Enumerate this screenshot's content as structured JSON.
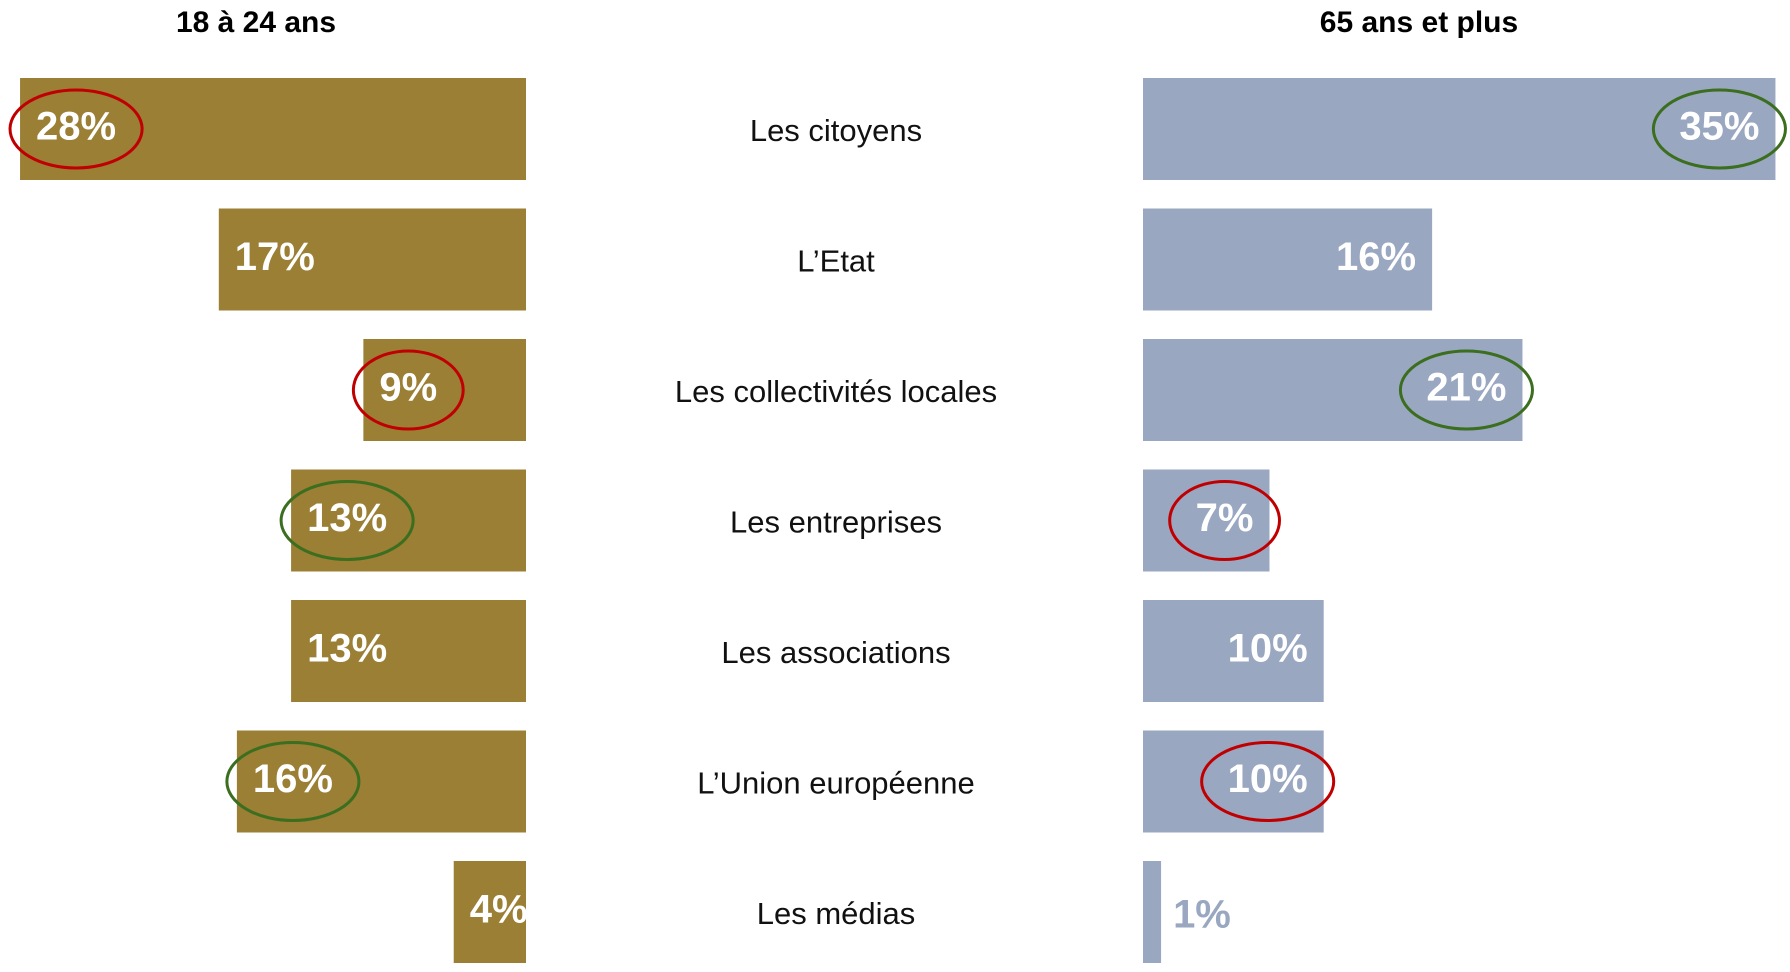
{
  "chart_data": {
    "type": "butterfly-bar",
    "categories": [
      "Les citoyens",
      "L’Etat",
      "Les collectivités locales",
      "Les entreprises",
      "Les associations",
      "L’Union européenne",
      "Les médias"
    ],
    "series": [
      {
        "name": "18 à 24 ans",
        "color": "#9a7f35",
        "values": [
          28,
          17,
          9,
          13,
          13,
          16,
          4
        ],
        "value_labels": [
          "28%",
          "17%",
          "9%",
          "13%",
          "13%",
          "16%",
          "4%"
        ],
        "circle_colors": [
          "#c00000",
          null,
          "#c00000",
          "#3b6e1e",
          null,
          "#3b6e1e",
          null
        ]
      },
      {
        "name": "65 ans et plus",
        "color": "#9aa7c1",
        "values": [
          35,
          16,
          21,
          7,
          10,
          10,
          1
        ],
        "value_labels": [
          "35%",
          "16%",
          "21%",
          "7%",
          "10%",
          "10%",
          "1%"
        ],
        "circle_colors": [
          "#3b6e1e",
          null,
          "#3b6e1e",
          "#c00000",
          null,
          "#c00000",
          null
        ]
      }
    ]
  }
}
